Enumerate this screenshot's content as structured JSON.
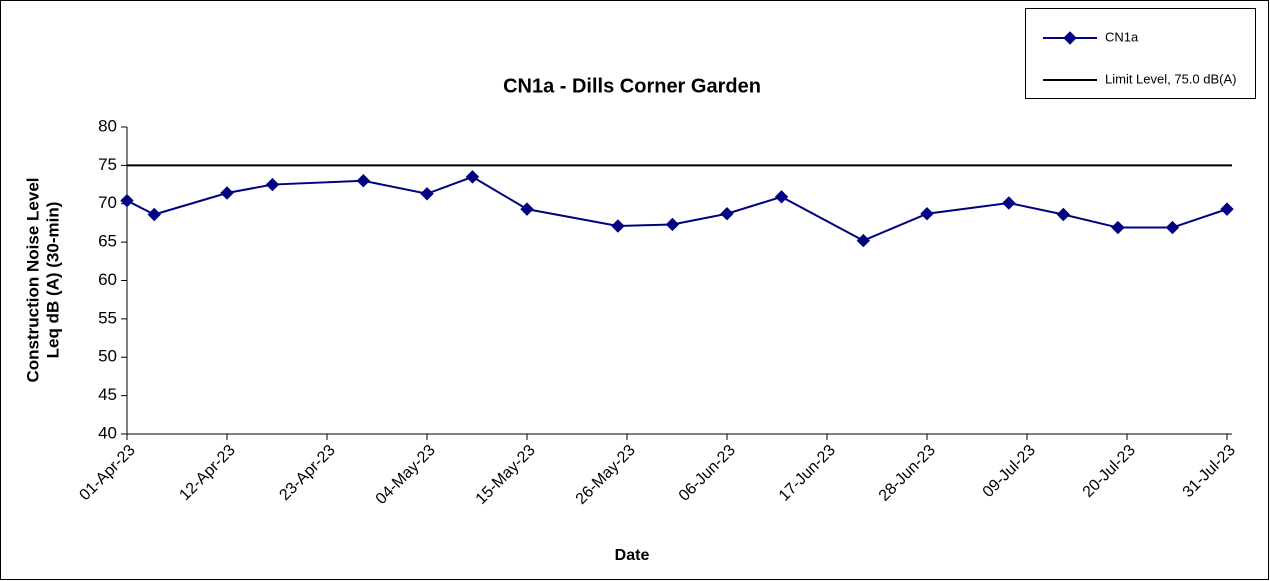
{
  "chart_data": {
    "type": "line",
    "title": "CN1a - Dills Corner Garden",
    "xlabel": "Date",
    "ylabel": [
      "Construction Noise Level",
      "Leq dB (A) (30-min)"
    ],
    "x": [
      "2023-04-01",
      "2023-04-04",
      "2023-04-12",
      "2023-04-17",
      "2023-04-27",
      "2023-05-04",
      "2023-05-09",
      "2023-05-15",
      "2023-05-25",
      "2023-05-31",
      "2023-06-06",
      "2023-06-12",
      "2023-06-21",
      "2023-06-28",
      "2023-07-07",
      "2023-07-13",
      "2023-07-19",
      "2023-07-25",
      "2023-07-31"
    ],
    "series": [
      {
        "name": "CN1a",
        "color": "#000080",
        "marker": "diamond",
        "values": [
          70.4,
          68.6,
          71.4,
          72.5,
          73.0,
          71.3,
          73.5,
          69.3,
          67.1,
          67.3,
          68.7,
          70.9,
          65.2,
          68.7,
          70.1,
          68.6,
          66.9,
          66.9,
          69.3
        ]
      }
    ],
    "limit": {
      "name": "Limit Level, 75.0 dB(A)",
      "value": 75,
      "color": "#000000"
    },
    "xlim": [
      "2023-04-01",
      "2023-07-31"
    ],
    "xticks": [
      {
        "value": "2023-04-01",
        "label": "01-Apr-23"
      },
      {
        "value": "2023-04-12",
        "label": "12-Apr-23"
      },
      {
        "value": "2023-04-23",
        "label": "23-Apr-23"
      },
      {
        "value": "2023-05-04",
        "label": "04-May-23"
      },
      {
        "value": "2023-05-15",
        "label": "15-May-23"
      },
      {
        "value": "2023-05-26",
        "label": "26-May-23"
      },
      {
        "value": "2023-06-06",
        "label": "06-Jun-23"
      },
      {
        "value": "2023-06-17",
        "label": "17-Jun-23"
      },
      {
        "value": "2023-06-28",
        "label": "28-Jun-23"
      },
      {
        "value": "2023-07-09",
        "label": "09-Jul-23"
      },
      {
        "value": "2023-07-20",
        "label": "20-Jul-23"
      },
      {
        "value": "2023-07-31",
        "label": "31-Jul-23"
      }
    ],
    "ylim": [
      40,
      80
    ],
    "yticks": [
      40,
      45,
      50,
      55,
      60,
      65,
      70,
      75,
      80
    ],
    "grid": false,
    "legend": "top-right"
  }
}
